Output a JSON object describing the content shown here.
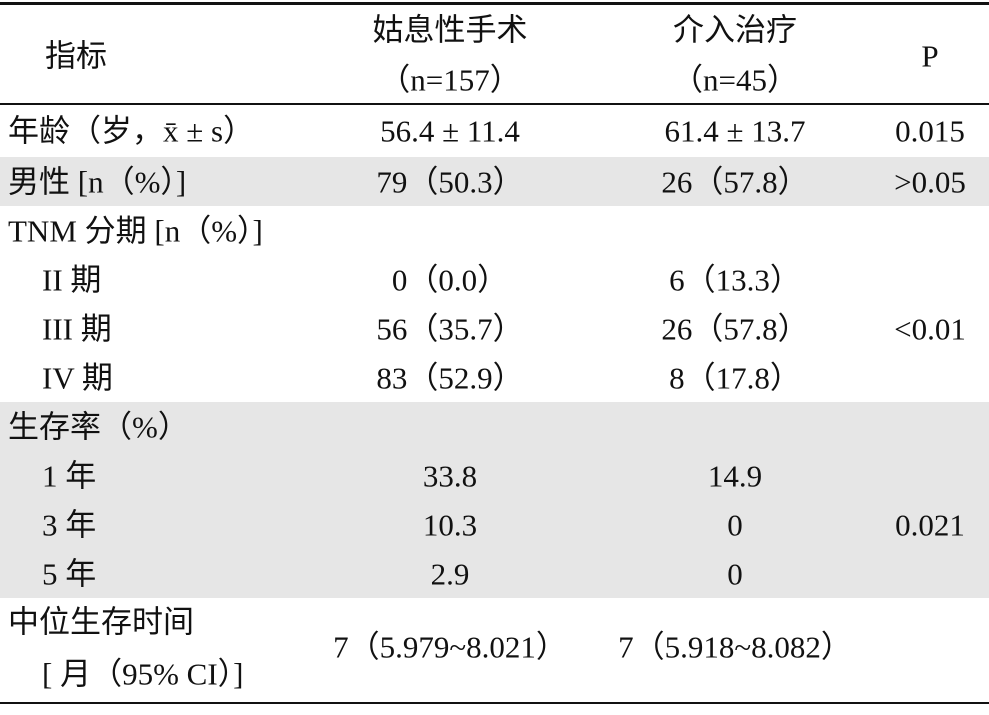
{
  "table": {
    "header": {
      "indicator": "指标",
      "surgery": [
        "姑息性手术",
        "（n=157）"
      ],
      "intervention": [
        "介入治疗",
        "（n=45）"
      ],
      "p": "P"
    },
    "rows": [
      {
        "label": "年龄（岁，x̄ ± s）",
        "surgery": "56.4 ± 11.4",
        "intervention": "61.4 ± 13.7",
        "p": "0.015"
      },
      {
        "label": "男性 [n（%）]",
        "surgery": "79（50.3）",
        "intervention": "26（57.8）",
        "p": ">0.05"
      },
      {
        "label": "TNM 分期 [n（%）]",
        "p": "<0.01",
        "items": [
          {
            "label": "II 期",
            "surgery": "0（0.0）",
            "intervention": "6（13.3）"
          },
          {
            "label": "III 期",
            "surgery": "56（35.7）",
            "intervention": "26（57.8）"
          },
          {
            "label": "IV 期",
            "surgery": "83（52.9）",
            "intervention": "8（17.8）"
          }
        ]
      },
      {
        "label": "生存率（%）",
        "p": "0.021",
        "items": [
          {
            "label": "1 年",
            "surgery": "33.8",
            "intervention": "14.9"
          },
          {
            "label": "3 年",
            "surgery": "10.3",
            "intervention": "0"
          },
          {
            "label": "5 年",
            "surgery": "2.9",
            "intervention": "0"
          }
        ]
      },
      {
        "label": [
          "中位生存时间",
          "[ 月（95% CI）]"
        ],
        "surgery": "7（5.979~8.021）",
        "intervention": "7（5.918~8.082）"
      }
    ]
  }
}
